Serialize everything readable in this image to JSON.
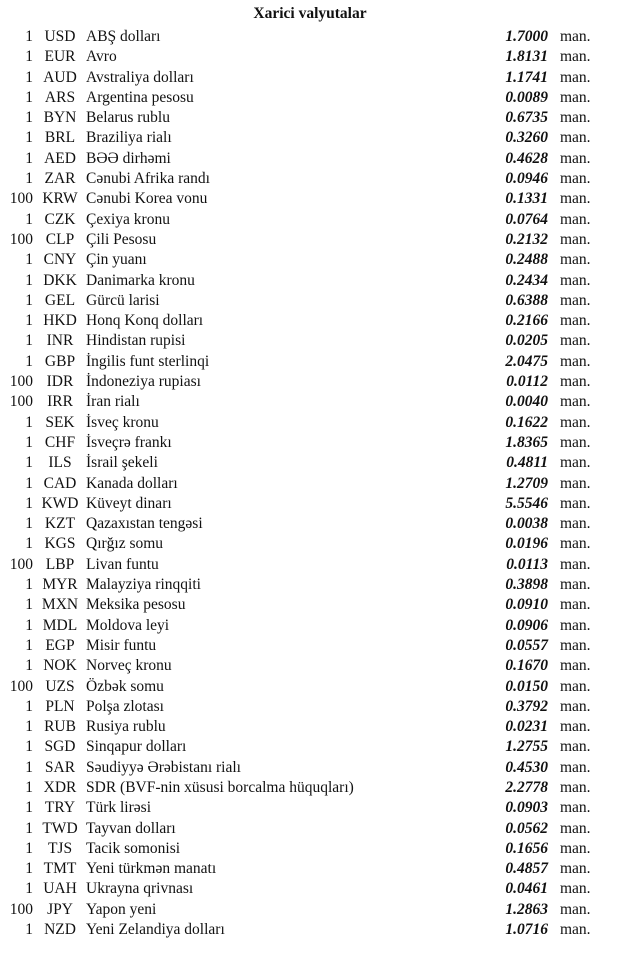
{
  "title": "Xarici valyutalar",
  "unit_label": "man.",
  "rows": [
    {
      "count": "1",
      "code": "USD",
      "name": "ABŞ dolları",
      "value": "1.7000"
    },
    {
      "count": "1",
      "code": "EUR",
      "name": "Avro",
      "value": "1.8131"
    },
    {
      "count": "1",
      "code": "AUD",
      "name": "Avstraliya dolları",
      "value": "1.1741"
    },
    {
      "count": "1",
      "code": "ARS",
      "name": "Argentina pesosu",
      "value": "0.0089"
    },
    {
      "count": "1",
      "code": "BYN",
      "name": "Belarus rublu",
      "value": "0.6735"
    },
    {
      "count": "1",
      "code": "BRL",
      "name": "Braziliya rialı",
      "value": "0.3260"
    },
    {
      "count": "1",
      "code": "AED",
      "name": "BƏƏ dirhəmi",
      "value": "0.4628"
    },
    {
      "count": "1",
      "code": "ZAR",
      "name": "Cənubi Afrika randı",
      "value": "0.0946"
    },
    {
      "count": "100",
      "code": "KRW",
      "name": "Cənubi Korea vonu",
      "value": "0.1331"
    },
    {
      "count": "1",
      "code": "CZK",
      "name": "Çexiya kronu",
      "value": "0.0764"
    },
    {
      "count": "100",
      "code": "CLP",
      "name": "Çili Pesosu",
      "value": "0.2132"
    },
    {
      "count": "1",
      "code": "CNY",
      "name": "Çin yuanı",
      "value": "0.2488"
    },
    {
      "count": "1",
      "code": "DKK",
      "name": "Danimarka kronu",
      "value": "0.2434"
    },
    {
      "count": "1",
      "code": "GEL",
      "name": "Gürcü larisi",
      "value": "0.6388"
    },
    {
      "count": "1",
      "code": "HKD",
      "name": "Honq Konq dolları",
      "value": "0.2166"
    },
    {
      "count": "1",
      "code": "INR",
      "name": "Hindistan rupisi",
      "value": "0.0205"
    },
    {
      "count": "1",
      "code": "GBP",
      "name": "İngilis funt sterlinqi",
      "value": "2.0475"
    },
    {
      "count": "100",
      "code": "IDR",
      "name": "İndoneziya rupiası",
      "value": "0.0112"
    },
    {
      "count": "100",
      "code": "IRR",
      "name": "İran rialı",
      "value": "0.0040"
    },
    {
      "count": "1",
      "code": "SEK",
      "name": "İsveç kronu",
      "value": "0.1622"
    },
    {
      "count": "1",
      "code": "CHF",
      "name": "İsveçrə frankı",
      "value": "1.8365"
    },
    {
      "count": "1",
      "code": "ILS",
      "name": "İsrail şekeli",
      "value": "0.4811"
    },
    {
      "count": "1",
      "code": "CAD",
      "name": "Kanada dolları",
      "value": "1.2709"
    },
    {
      "count": "1",
      "code": "KWD",
      "name": "Küveyt dinarı",
      "value": "5.5546"
    },
    {
      "count": "1",
      "code": "KZT",
      "name": "Qazaxıstan tengəsi",
      "value": "0.0038"
    },
    {
      "count": "1",
      "code": "KGS",
      "name": "Qırğız somu",
      "value": "0.0196"
    },
    {
      "count": "100",
      "code": "LBP",
      "name": "Livan funtu",
      "value": "0.0113"
    },
    {
      "count": "1",
      "code": "MYR",
      "name": "Malayziya rinqqiti",
      "value": "0.3898"
    },
    {
      "count": "1",
      "code": "MXN",
      "name": "Meksika pesosu",
      "value": "0.0910"
    },
    {
      "count": "1",
      "code": "MDL",
      "name": "Moldova leyi",
      "value": "0.0906"
    },
    {
      "count": "1",
      "code": "EGP",
      "name": "Misir funtu",
      "value": "0.0557"
    },
    {
      "count": "1",
      "code": "NOK",
      "name": "Norveç kronu",
      "value": "0.1670"
    },
    {
      "count": "100",
      "code": "UZS",
      "name": "Özbək somu",
      "value": "0.0150"
    },
    {
      "count": "1",
      "code": "PLN",
      "name": "Polşa zlotası",
      "value": "0.3792"
    },
    {
      "count": "1",
      "code": "RUB",
      "name": "Rusiya rublu",
      "value": "0.0231"
    },
    {
      "count": "1",
      "code": "SGD",
      "name": "Sinqapur dolları",
      "value": "1.2755"
    },
    {
      "count": "1",
      "code": "SAR",
      "name": "Səudiyyə Ərəbistanı rialı",
      "value": "0.4530"
    },
    {
      "count": "1",
      "code": "XDR",
      "name": "SDR (BVF-nin xüsusi borcalma hüquqları)",
      "value": "2.2778"
    },
    {
      "count": "1",
      "code": "TRY",
      "name": "Türk lirəsi",
      "value": "0.0903"
    },
    {
      "count": "1",
      "code": "TWD",
      "name": "Tayvan dolları",
      "value": "0.0562"
    },
    {
      "count": "1",
      "code": "TJS",
      "name": "Tacik somonisi",
      "value": "0.1656"
    },
    {
      "count": "1",
      "code": "TMT",
      "name": "Yeni türkmən manatı",
      "value": "0.4857"
    },
    {
      "count": "1",
      "code": "UAH",
      "name": "Ukrayna qrivnası",
      "value": "0.0461"
    },
    {
      "count": "100",
      "code": "JPY",
      "name": "Yapon yeni",
      "value": "1.2863"
    },
    {
      "count": "1",
      "code": "NZD",
      "name": "Yeni Zelandiya dolları",
      "value": "1.0716"
    }
  ]
}
